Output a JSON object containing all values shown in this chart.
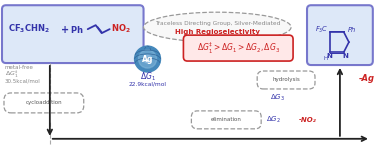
{
  "bg_color": "#ffffff",
  "reactant_box_color": "#7777cc",
  "reactant_box_bg": "#dde8f8",
  "product_box_color": "#7777cc",
  "product_box_bg": "#dde8f8",
  "title_text": "Traceless Directing Group, Silver-Mediated",
  "subtitle_text": "High Regioselectivity",
  "subtitle_color": "#cc2222",
  "metal_free_text": "metal-free",
  "dG1_star_val": "30.5kcal/mol",
  "cycloaddition_text": "cycloaddition",
  "dG1_val": "22.9kcal/mol",
  "elimination_text": "elimination",
  "minus_no2_text": "-NO₂",
  "hydrolysis_text": "hydrolysis",
  "minus_ag_text": "-Ag",
  "arrow_color": "#222222",
  "blue_text_color": "#3333aa",
  "red_text_color": "#cc2222",
  "gray_text_color": "#888888",
  "dashed_box_color": "#999999",
  "ineq_box_color": "#cc2222",
  "ineq_box_bg": "#ffe8e8"
}
